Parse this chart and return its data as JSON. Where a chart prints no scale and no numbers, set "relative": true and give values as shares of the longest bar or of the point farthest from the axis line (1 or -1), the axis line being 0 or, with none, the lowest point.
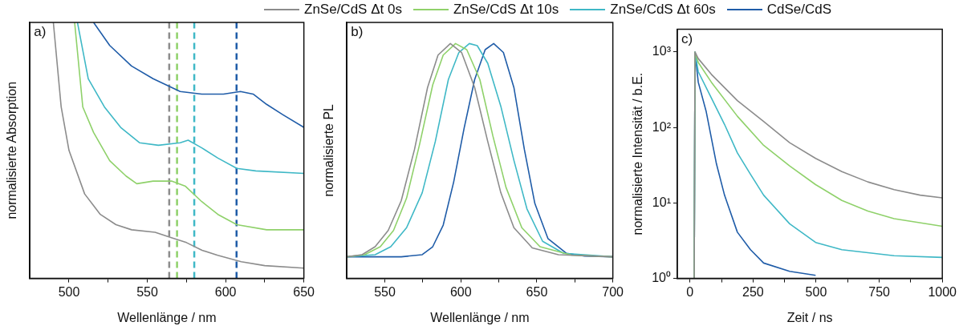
{
  "chart_data": [
    {
      "type": "line",
      "xlabel": "Wellenlänge / nm",
      "ylabel": "normalisierte Absorption",
      "relative": true,
      "legend": "top",
      "annotations": [
        "a)"
      ],
      "xlim": [
        475,
        650
      ],
      "xticks": [
        500,
        {
          "value": 525,
          "label": null
        },
        550,
        {
          "value": 575,
          "label": null
        },
        600,
        {
          "value": 625,
          "label": null
        },
        650
      ],
      "ref_lines": [
        {
          "axis": "x",
          "value": 564,
          "color": "#8c8c8c",
          "line_style": "dashed"
        },
        {
          "axis": "x",
          "value": 569,
          "color": "#8fd16a",
          "line_style": "dashed"
        },
        {
          "axis": "x",
          "value": 580,
          "color": "#3fb8c6",
          "line_style": "dashed"
        },
        {
          "axis": "x",
          "value": 607,
          "color": "#1f5ca8",
          "line_style": "dashed"
        }
      ],
      "series": [
        {
          "name": "ZnSe/CdS Δt 0s",
          "color": "#8c8c8c",
          "x": [
            490,
            495,
            500,
            510,
            520,
            530,
            540,
            555,
            565,
            575,
            585,
            595,
            610,
            625,
            650
          ],
          "values": [
            1,
            0.67,
            0.5,
            0.33,
            0.25,
            0.21,
            0.19,
            0.18,
            0.16,
            0.14,
            0.11,
            0.09,
            0.065,
            0.05,
            0.04
          ]
        },
        {
          "name": "ZnSe/CdS Δt 10s",
          "color": "#8fd16a",
          "x": [
            503.6,
            508.8,
            515.7,
            526,
            536.4,
            543.3,
            553.7,
            565.8,
            574.4,
            584.8,
            595.1,
            607.2,
            626.2,
            650
          ],
          "values": [
            1,
            0.67,
            0.57,
            0.46,
            0.4,
            0.37,
            0.38,
            0.38,
            0.36,
            0.3,
            0.25,
            0.21,
            0.19,
            0.19
          ]
        },
        {
          "name": "ZnSe/CdS Δt 60s",
          "color": "#3fb8c6",
          "x": [
            505.4,
            512.3,
            522.6,
            533,
            545,
            557.1,
            571,
            576.1,
            584.8,
            595.1,
            607.2,
            619.3,
            650
          ],
          "values": [
            1,
            0.78,
            0.67,
            0.59,
            0.53,
            0.52,
            0.53,
            0.54,
            0.51,
            0.47,
            0.43,
            0.42,
            0.41
          ]
        },
        {
          "name": "CdSe/CdS",
          "color": "#1f5ca8",
          "x": [
            515.7,
            526,
            539.9,
            553.7,
            571,
            584.8,
            598.6,
            609.5,
            617.6,
            626.2,
            636.5,
            650
          ],
          "values": [
            1,
            0.91,
            0.83,
            0.78,
            0.73,
            0.72,
            0.72,
            0.73,
            0.72,
            0.68,
            0.64,
            0.59
          ]
        }
      ]
    },
    {
      "type": "line",
      "xlabel": "Wellenlänge / nm",
      "ylabel": "normalisierte PL",
      "relative": true,
      "annotations": [
        "b)"
      ],
      "xlim": [
        525,
        700
      ],
      "xticks": [
        550,
        {
          "value": 575,
          "label": null
        },
        600,
        {
          "value": 625,
          "label": null
        },
        650,
        {
          "value": 675,
          "label": null
        },
        700
      ],
      "series": [
        {
          "color": "#8c8c8c",
          "x": [
            525,
            535,
            543.6,
            552.2,
            560.8,
            569.5,
            578.1,
            585,
            593.1,
            600.5,
            609.1,
            617.7,
            626.3,
            634.9,
            647,
            664.2,
            700
          ],
          "values": [
            0.092,
            0.101,
            0.135,
            0.204,
            0.331,
            0.549,
            0.813,
            0.951,
            1,
            0.962,
            0.813,
            0.583,
            0.365,
            0.216,
            0.13,
            0.101,
            0.092
          ]
        },
        {
          "color": "#8fd16a",
          "x": [
            525,
            536.7,
            547,
            555.7,
            564.3,
            572.9,
            581.5,
            588.4,
            596.5,
            603.9,
            612.5,
            621.1,
            629.7,
            640.1,
            652.1,
            672.8,
            700
          ],
          "values": [
            0.092,
            0.101,
            0.135,
            0.204,
            0.342,
            0.572,
            0.824,
            0.951,
            1,
            0.974,
            0.847,
            0.606,
            0.388,
            0.216,
            0.135,
            0.099,
            0.092
          ]
        },
        {
          "color": "#3fb8c6",
          "x": [
            525,
            543.6,
            553.9,
            564.3,
            574.6,
            583.2,
            591.8,
            598.7,
            605.6,
            610.8,
            617.7,
            626.3,
            634.9,
            643.5,
            653.8,
            667.6,
            700
          ],
          "values": [
            0.092,
            0.101,
            0.135,
            0.216,
            0.365,
            0.583,
            0.847,
            0.962,
            1,
            0.991,
            0.916,
            0.733,
            0.503,
            0.296,
            0.158,
            0.107,
            0.092
          ]
        },
        {
          "color": "#1f5ca8",
          "x": [
            525,
            560.8,
            574.6,
            581.5,
            588.4,
            595.3,
            602.2,
            609.1,
            616,
            621.6,
            628,
            634.9,
            641.8,
            648.7,
            657.3,
            669.4,
            681.4,
            700
          ],
          "values": [
            0.092,
            0.092,
            0.101,
            0.135,
            0.227,
            0.411,
            0.641,
            0.847,
            0.974,
            1,
            0.962,
            0.813,
            0.549,
            0.319,
            0.17,
            0.107,
            0.095,
            0.092
          ]
        }
      ]
    },
    {
      "type": "line",
      "xlabel": "Zeit / ns",
      "ylabel": "normalisierte Intensität / b.E.",
      "log": "y",
      "annotations": [
        "c)"
      ],
      "xlim": [
        -50,
        1000
      ],
      "xticks": [
        0,
        {
          "value": 125,
          "label": null
        },
        250,
        {
          "value": 375,
          "label": null
        },
        500,
        {
          "value": 625,
          "label": null
        },
        750,
        {
          "value": 875,
          "label": null
        },
        1000
      ],
      "ylim": [
        1,
        2000
      ],
      "yticks": [
        {
          "value": 1,
          "label": "10⁰"
        },
        {
          "value": 10,
          "label": "10¹"
        },
        {
          "value": 100,
          "label": "10²"
        },
        {
          "value": 1000,
          "label": "10³"
        }
      ],
      "series": [
        {
          "color": "#8c8c8c",
          "x": [
            17,
            20,
            33,
            85,
            188,
            292,
            395,
            498,
            602,
            705,
            809,
            912,
            1000
          ],
          "values": [
            1,
            1000,
            819,
            506,
            227,
            120,
            63,
            39,
            26,
            19,
            15,
            12.7,
            11.7
          ]
        },
        {
          "color": "#8fd16a",
          "x": [
            17,
            20,
            33,
            85,
            188,
            292,
            395,
            498,
            602,
            705,
            809,
            1000
          ],
          "values": [
            1,
            1000,
            726,
            398,
            141,
            58,
            31,
            17.5,
            10.8,
            7.8,
            6.2,
            4.9
          ]
        },
        {
          "color": "#3fb8c6",
          "x": [
            17,
            20,
            33,
            85,
            137,
            188,
            240,
            292,
            395,
            498,
            602,
            809,
            1000
          ],
          "values": [
            1,
            1000,
            549,
            246,
            110,
            46,
            24,
            12.7,
            5.3,
            3,
            2.4,
            2,
            1.9
          ]
        },
        {
          "color": "#1f5ca8",
          "x": [
            17,
            20,
            33,
            64,
            105,
            137,
            188,
            240,
            292,
            395,
            498
          ],
          "values": [
            1,
            1000,
            398,
            165,
            33,
            12.7,
            4.1,
            2.4,
            1.6,
            1.24,
            1.1
          ]
        }
      ]
    }
  ]
}
